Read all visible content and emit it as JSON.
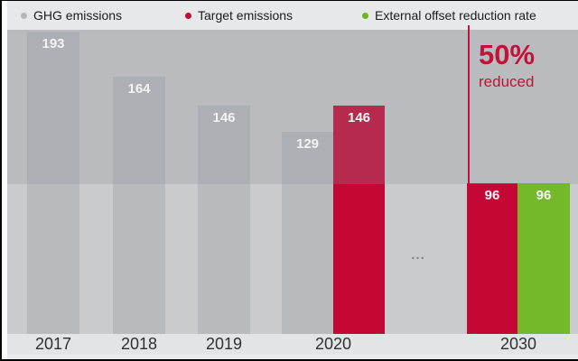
{
  "legend": {
    "items": [
      {
        "label": "GHG emissions",
        "color": "#b4b7ba"
      },
      {
        "label": "Target emissions",
        "color": "#c10c35"
      },
      {
        "label": "External offset reduction rate",
        "color": "#6cb61e"
      }
    ]
  },
  "x_axis": {
    "labels": [
      "2017",
      "2018",
      "2019",
      "2020",
      "2030"
    ]
  },
  "annotation": {
    "percent": "50%",
    "caption": "reduced"
  },
  "gap_marker": "...",
  "chart_data": {
    "type": "bar",
    "title": "",
    "categories": [
      "2017",
      "2018",
      "2019",
      "2020",
      "2030"
    ],
    "series": [
      {
        "name": "GHG emissions",
        "color": "#b8bbbe",
        "values": [
          193,
          164,
          146,
          129,
          null
        ]
      },
      {
        "name": "Target emissions",
        "color": "#c40735",
        "values": [
          null,
          null,
          null,
          146,
          96
        ]
      },
      {
        "name": "External offset reduction rate",
        "color": "#74b927",
        "values": [
          null,
          null,
          null,
          null,
          96
        ]
      }
    ],
    "bars": [
      {
        "category": "2017",
        "series": "ghg",
        "value": 193
      },
      {
        "category": "2018",
        "series": "ghg",
        "value": 164
      },
      {
        "category": "2019",
        "series": "ghg",
        "value": 146
      },
      {
        "category": "2020",
        "series": "ghg",
        "value": 129
      },
      {
        "category": "2020",
        "series": "target",
        "value": 146
      },
      {
        "category": "2030",
        "series": "target",
        "value": 96
      },
      {
        "category": "2030",
        "series": "offset",
        "value": 96
      }
    ],
    "annotation": "50% reduced",
    "threshold_value": 96,
    "ylim": [
      0,
      200
    ],
    "legend_position": "top",
    "grid": false
  },
  "colors": {
    "red": "#c40735",
    "green": "#74b927",
    "gray_bar": "#b8bbbe",
    "accent_line": "#c41439",
    "upper_zone_tint": "rgba(138,143,148,0.26)"
  }
}
